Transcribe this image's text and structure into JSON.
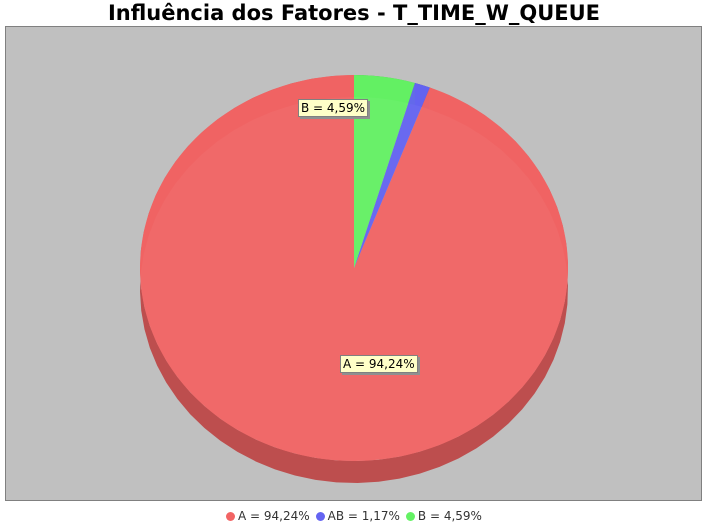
{
  "chart_data": {
    "type": "pie",
    "title": "Influência dos Fatores - T_TIME_W_QUEUE",
    "style": "3d",
    "legend_position": "bottom",
    "slices": [
      {
        "name": "A",
        "value": 94.24,
        "label": "A = 94,24%",
        "color": "#f26464"
      },
      {
        "name": "AB",
        "value": 1.17,
        "label": "AB = 1,17%",
        "color": "#6464f2"
      },
      {
        "name": "B",
        "value": 4.59,
        "label": "B = 4,59%",
        "color": "#64f264"
      }
    ],
    "shown_labels": [
      "A = 94,24%",
      "B = 4,59%"
    ]
  }
}
